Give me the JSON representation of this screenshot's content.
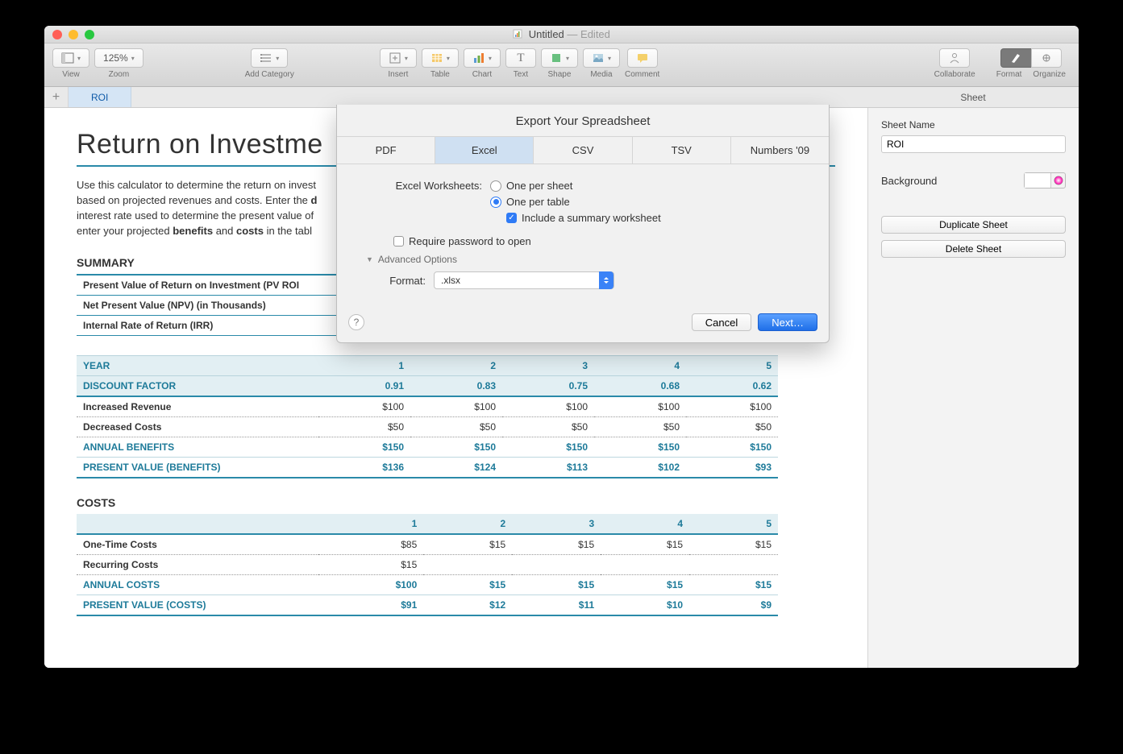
{
  "window": {
    "title": "Untitled",
    "status": "Edited"
  },
  "toolbar": {
    "zoom": "125%",
    "labels": {
      "view": "View",
      "zoom": "Zoom",
      "addcat": "Add Category",
      "insert": "Insert",
      "table": "Table",
      "chart": "Chart",
      "text": "Text",
      "shape": "Shape",
      "media": "Media",
      "comment": "Comment",
      "collab": "Collaborate",
      "format": "Format",
      "organize": "Organize"
    }
  },
  "sheet": {
    "tab": "ROI"
  },
  "inspector": {
    "tab": "Sheet",
    "name_label": "Sheet Name",
    "name_value": "ROI",
    "bg_label": "Background",
    "bg_color": "#ffffff",
    "dup": "Duplicate Sheet",
    "del": "Delete Sheet"
  },
  "doc": {
    "h1": "Return on Investme",
    "intro_a": "Use this calculator to determine the return on invest",
    "intro_b": "based on projected revenues and costs. Enter the ",
    "intro_b_bold": "d",
    "intro_c": "interest rate used to determine the present value of ",
    "intro_d_a": "enter your projected ",
    "intro_d_b": "benefits",
    "intro_d_c": " and ",
    "intro_d_d": "costs",
    "intro_d_e": " in the tabl",
    "summary_h": "SUMMARY",
    "summary_rows": [
      "Present Value of Return on Investment (PV ROI",
      "Net Present Value (NPV) (in Thousands)",
      "Internal Rate of Return (IRR)"
    ],
    "benefits": {
      "year_label": "YEAR",
      "years": [
        "1",
        "2",
        "3",
        "4",
        "5"
      ],
      "df_label": "DISCOUNT FACTOR",
      "df": [
        "0.91",
        "0.83",
        "0.75",
        "0.68",
        "0.62"
      ],
      "rows": [
        {
          "label": "Increased Revenue",
          "vals": [
            "$100",
            "$100",
            "$100",
            "$100",
            "$100"
          ],
          "cls": "norm"
        },
        {
          "label": "Decreased Costs",
          "vals": [
            "$50",
            "$50",
            "$50",
            "$50",
            "$50"
          ],
          "cls": "norm"
        },
        {
          "label": "ANNUAL BENEFITS",
          "vals": [
            "$150",
            "$150",
            "$150",
            "$150",
            "$150"
          ],
          "cls": "teal"
        },
        {
          "label": "PRESENT VALUE (BENEFITS)",
          "vals": [
            "$136",
            "$124",
            "$113",
            "$102",
            "$93"
          ],
          "cls": "teal2"
        }
      ]
    },
    "costs_h": "COSTS",
    "costs": {
      "years": [
        "1",
        "2",
        "3",
        "4",
        "5"
      ],
      "rows": [
        {
          "label": "One-Time Costs",
          "vals": [
            "$85",
            "$15",
            "$15",
            "$15",
            "$15"
          ],
          "cls": "norm"
        },
        {
          "label": "Recurring Costs",
          "vals": [
            "$15",
            "",
            "",
            "",
            ""
          ],
          "cls": "norm"
        },
        {
          "label": "ANNUAL COSTS",
          "vals": [
            "$100",
            "$15",
            "$15",
            "$15",
            "$15"
          ],
          "cls": "teal"
        },
        {
          "label": "PRESENT VALUE (COSTS)",
          "vals": [
            "$91",
            "$12",
            "$11",
            "$10",
            "$9"
          ],
          "cls": "teal2"
        }
      ]
    }
  },
  "modal": {
    "title": "Export Your Spreadsheet",
    "tabs": [
      "PDF",
      "Excel",
      "CSV",
      "TSV",
      "Numbers '09"
    ],
    "active_tab": 1,
    "worksheets_label": "Excel Worksheets:",
    "opt_sheet": "One per sheet",
    "opt_table": "One per table",
    "opt_summary": "Include a summary worksheet",
    "req_pw": "Require password to open",
    "adv": "Advanced Options",
    "format_label": "Format:",
    "format_value": ".xlsx",
    "cancel": "Cancel",
    "next": "Next…"
  },
  "colors": {
    "teal": "#1d7a99",
    "accent": "#2f7bf6"
  }
}
